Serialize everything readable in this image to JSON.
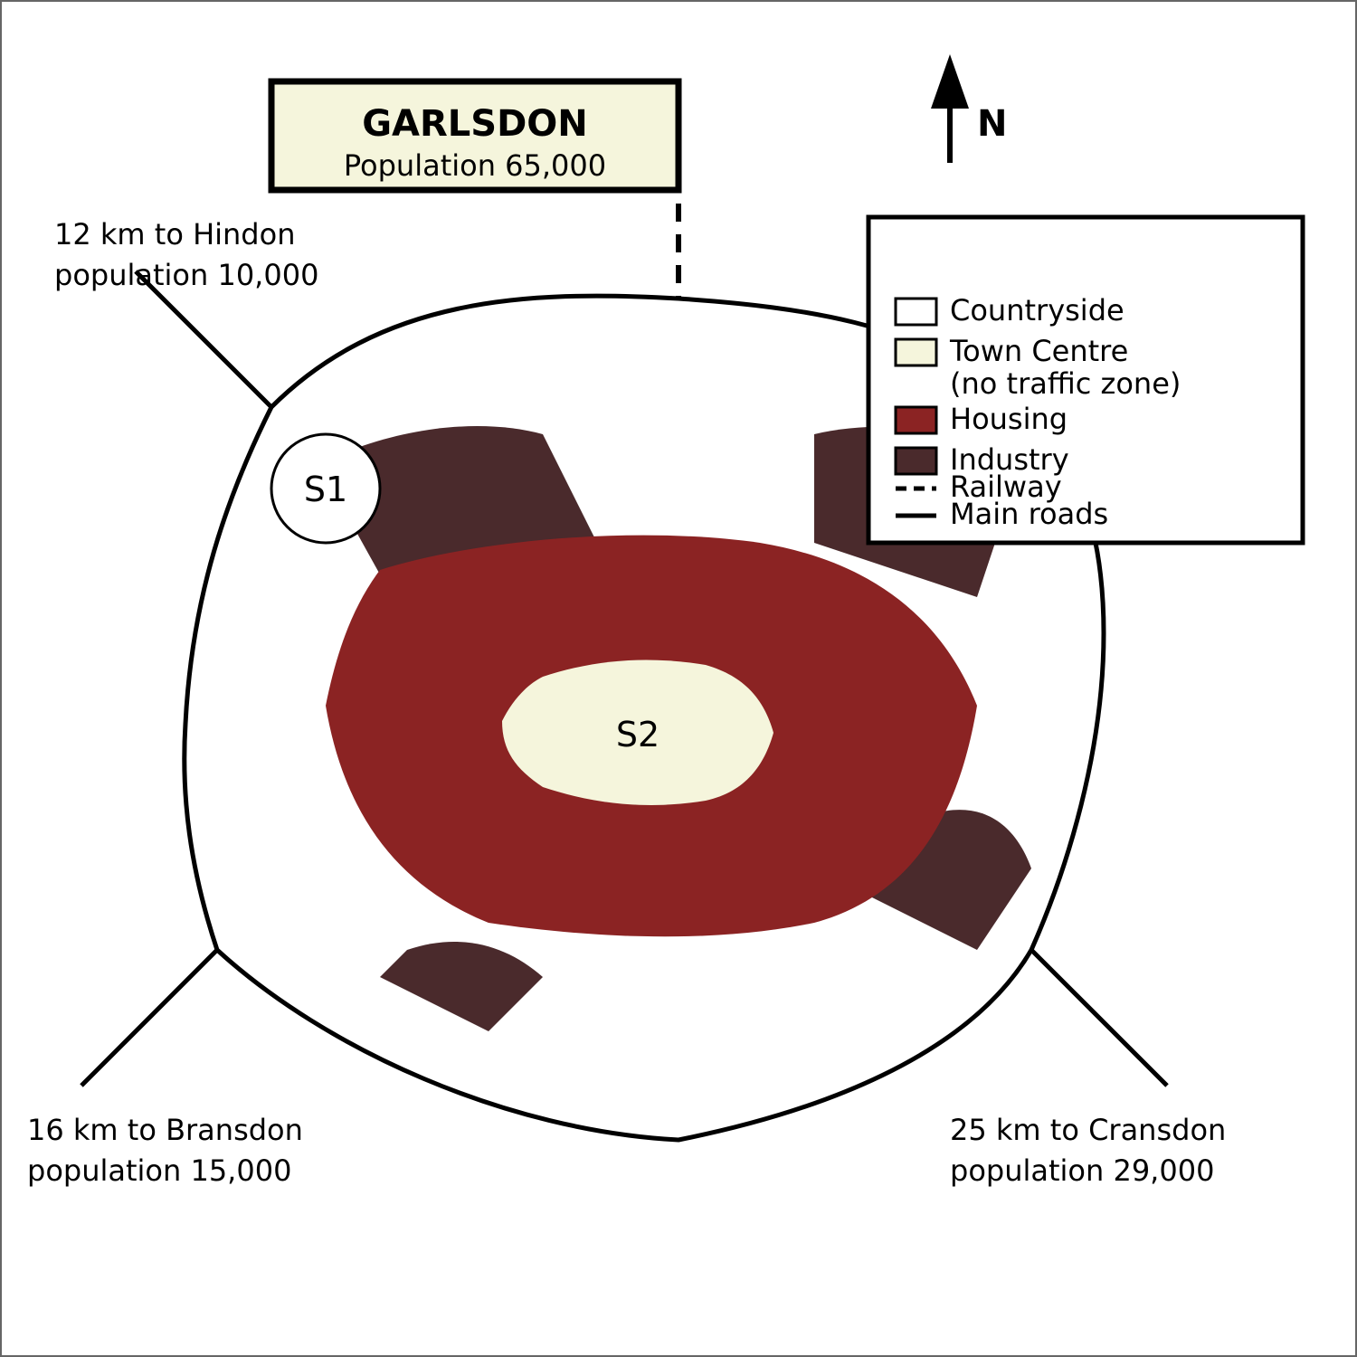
{
  "title_box": {
    "town": "GARLSDON",
    "population": "Population 65,000"
  },
  "north_arrow": {
    "label": "N"
  },
  "sites": {
    "s1": "S1",
    "s2": "S2"
  },
  "roads": {
    "hindon": {
      "line1": "12 km to Hindon",
      "line2": "population 10,000"
    },
    "bransdon": {
      "line1": "16 km to Bransdon",
      "line2": "population 15,000"
    },
    "cransdon": {
      "line1": "25 km to Cransdon",
      "line2": "population 29,000"
    }
  },
  "legend": {
    "countryside": "Countryside",
    "town_centre_1": "Town Centre",
    "town_centre_2": "(no traffic zone)",
    "housing": "Housing",
    "industry": "Industry",
    "railway": "Railway",
    "main_roads": "Main roads"
  },
  "colors": {
    "countryside": "#ffffff",
    "town_centre": "#f5f5dc",
    "housing": "#8b2323",
    "industry": "#4a2a2c"
  }
}
